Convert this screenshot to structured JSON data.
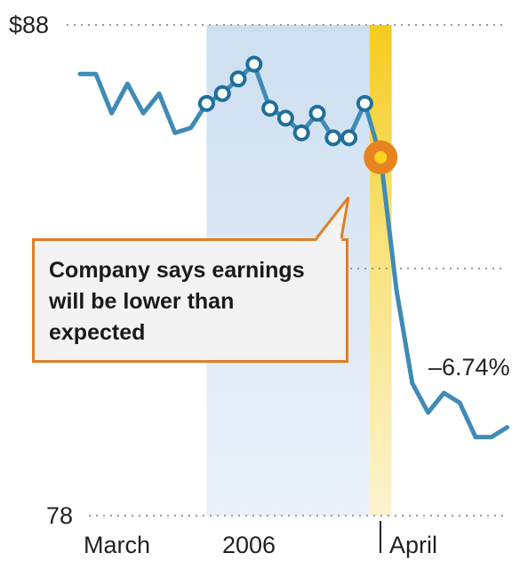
{
  "chart_data": {
    "type": "line",
    "y_ticks": [
      {
        "value": 88,
        "label": "$88"
      },
      {
        "value": 78,
        "label": "78"
      }
    ],
    "ylim": [
      78,
      88
    ],
    "x_labels": [
      "March",
      "2006",
      "April"
    ],
    "x": [
      0,
      1,
      2,
      3,
      4,
      5,
      6,
      7,
      8,
      9,
      10,
      11,
      12,
      13,
      14,
      15,
      16,
      17,
      18,
      19,
      20,
      21,
      22,
      23,
      24,
      25,
      26,
      27
    ],
    "values": [
      87.0,
      87.0,
      86.2,
      86.8,
      86.2,
      86.6,
      85.8,
      85.9,
      86.4,
      86.6,
      86.9,
      87.2,
      86.3,
      86.1,
      85.8,
      86.2,
      85.7,
      85.7,
      86.4,
      85.3,
      82.6,
      80.7,
      80.1,
      80.5,
      80.3,
      79.6,
      79.6,
      79.8
    ],
    "marked_points": [
      8,
      9,
      10,
      11,
      12,
      13,
      14,
      15,
      16,
      17,
      18
    ],
    "event_index": 19,
    "shaded_range": [
      8,
      18.3
    ],
    "highlight_range": [
      18.3,
      19.7
    ],
    "annotation": "Company says earnings will be lower than expected",
    "change_label": "–6.74%",
    "colors": {
      "line": "#3f8bb5",
      "marker_stroke": "#1f6f9c",
      "shade": "#d9e6f4",
      "highlight": "#f7d12a",
      "event_marker": "#e8831f",
      "annotation_border": "#e07e25"
    }
  }
}
